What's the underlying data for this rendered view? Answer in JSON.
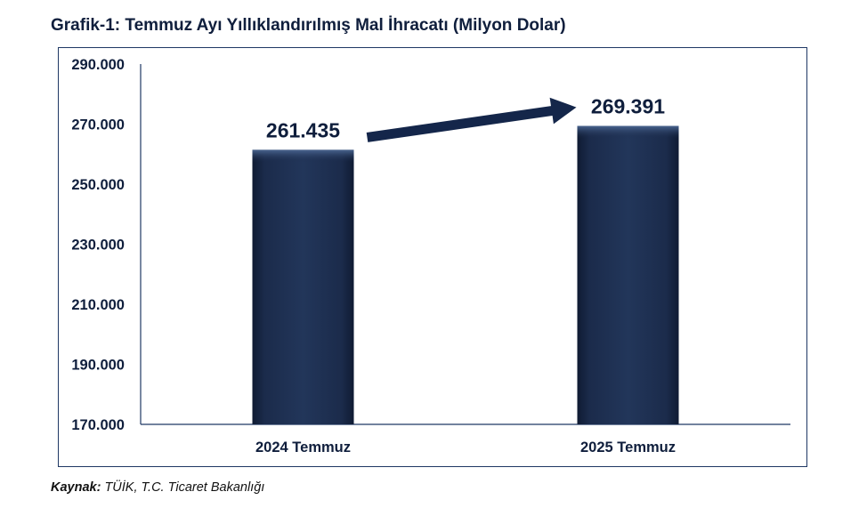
{
  "title": "Grafik-1: Temmuz Ayı Yıllıklandırılmış Mal İhracatı (Milyon Dolar)",
  "source": {
    "label": "Kaynak:",
    "text": " TÜİK, T.C. Ticaret Bakanlığı"
  },
  "chart_data": {
    "type": "bar",
    "title": "Grafik-1: Temmuz Ayı Yıllıklandırılmış Mal İhracatı (Milyon Dolar)",
    "xlabel": "",
    "ylabel": "",
    "categories": [
      "2024 Temmuz",
      "2025 Temmuz"
    ],
    "values": [
      261435,
      269391
    ],
    "data_labels": [
      "261.435",
      "269.391"
    ],
    "ylim": [
      170000,
      290000
    ],
    "yticks": [
      170000,
      190000,
      210000,
      230000,
      250000,
      270000,
      290000
    ],
    "ytick_labels": [
      "170.000",
      "190.000",
      "210.000",
      "230.000",
      "250.000",
      "270.000",
      "290.000"
    ],
    "grid": false,
    "legend": "none",
    "annotation": "arrow from first bar label to second bar label",
    "colors": {
      "bar": "#1b2b4b",
      "bar_highlight": "#3a5278",
      "axis": "#1f3864",
      "text": "#0f1e3c",
      "arrow": "#14264a"
    }
  }
}
